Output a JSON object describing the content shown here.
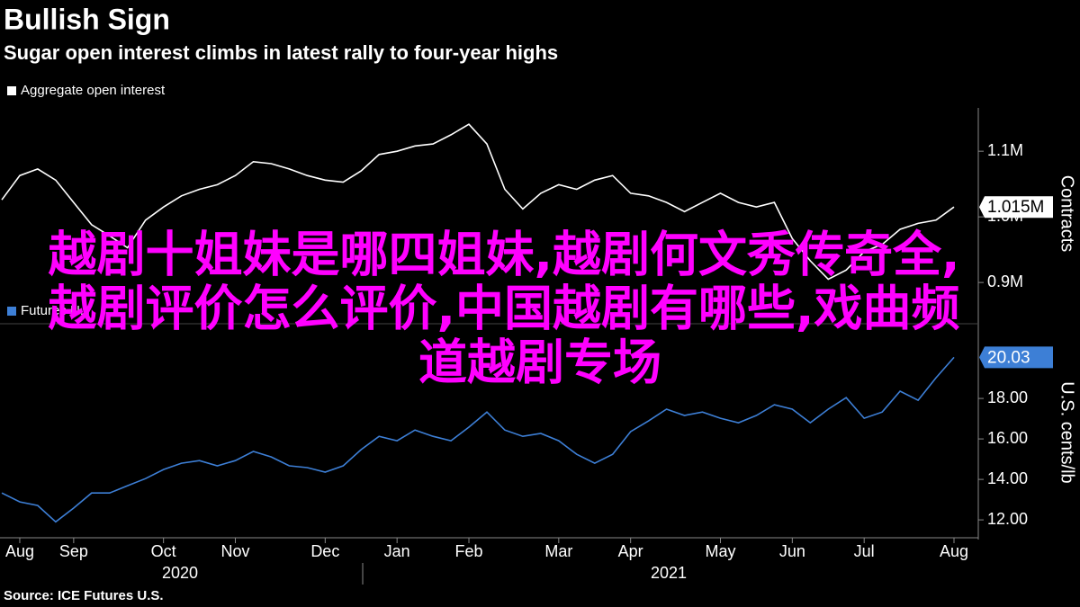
{
  "title": "Bullish Sign",
  "subtitle": "Sugar open interest climbs in latest rally to four-year highs",
  "source": "Source: ICE Futures U.S.",
  "overlay": [
    "越剧十姐妹是哪四姐妹,越剧何文秀传奇全,",
    "越剧评价怎么评价,中国越剧有哪些,戏曲频",
    "道越剧专场"
  ],
  "chart_data": [
    {
      "type": "line",
      "y_label": "Contracts",
      "legend": "upper left",
      "ylim": [
        844000,
        1166000
      ],
      "yticks": [
        {
          "value": 900000,
          "label": "0.9M"
        },
        {
          "value": 1000000,
          "label": "1.0M"
        },
        {
          "value": 1100000,
          "label": "1.1M"
        }
      ],
      "series": [
        {
          "name": "Aggregate open interest",
          "color": "#ffffff",
          "last_value_label": "1.015M",
          "values": [
            1026000,
            1063000,
            1073000,
            1056000,
            1022000,
            988000,
            971000,
            953000,
            995000,
            1015000,
            1032000,
            1042000,
            1049000,
            1063000,
            1084000,
            1081000,
            1073000,
            1063000,
            1056000,
            1053000,
            1070000,
            1095000,
            1100000,
            1108000,
            1111000,
            1125000,
            1141000,
            1111000,
            1042000,
            1012000,
            1036000,
            1049000,
            1042000,
            1056000,
            1063000,
            1036000,
            1032000,
            1022000,
            1008000,
            1022000,
            1036000,
            1022000,
            1015000,
            1022000,
            967000,
            933000,
            905000,
            919000,
            947000,
            958000,
            981000,
            990000,
            995000,
            1015000
          ]
        }
      ]
    },
    {
      "type": "line",
      "y_label": "U.S. cents/lb",
      "legend": "upper left",
      "ylim": [
        11.16,
        21.47
      ],
      "yticks": [
        {
          "value": 12,
          "label": "12.00"
        },
        {
          "value": 14,
          "label": "14.00"
        },
        {
          "value": 16,
          "label": "16.00"
        },
        {
          "value": 18,
          "label": "18.00"
        }
      ],
      "x": [
        null,
        "Aug",
        null,
        null,
        "Sep",
        null,
        null,
        null,
        null,
        "Oct",
        null,
        null,
        null,
        "Nov",
        null,
        null,
        null,
        null,
        "Dec",
        null,
        null,
        null,
        "Jan",
        null,
        null,
        null,
        "Feb",
        null,
        null,
        null,
        null,
        "Mar",
        null,
        null,
        null,
        "Apr",
        null,
        null,
        null,
        null,
        "May",
        null,
        null,
        null,
        "Jun",
        null,
        null,
        null,
        "Jul",
        null,
        null,
        null,
        null,
        "Aug"
      ],
      "years": [
        "2020",
        "2021"
      ],
      "series": [
        {
          "name": "Futures N.Y.",
          "color": "#3d7fd6",
          "last_value_label": "20.03",
          "values": [
            13.33,
            12.89,
            12.71,
            11.9,
            12.58,
            13.33,
            13.33,
            13.69,
            14.04,
            14.49,
            14.8,
            14.93,
            14.67,
            14.93,
            15.38,
            15.11,
            14.67,
            14.58,
            14.36,
            14.67,
            15.47,
            16.13,
            15.91,
            16.44,
            16.13,
            15.91,
            16.58,
            17.33,
            16.44,
            16.13,
            16.27,
            15.91,
            15.24,
            14.8,
            15.24,
            16.36,
            16.89,
            17.47,
            17.16,
            17.33,
            17.02,
            16.8,
            17.16,
            17.69,
            17.47,
            16.8,
            17.47,
            18.04,
            17.02,
            17.33,
            18.36,
            17.91,
            19.02,
            20.03
          ]
        }
      ]
    }
  ]
}
